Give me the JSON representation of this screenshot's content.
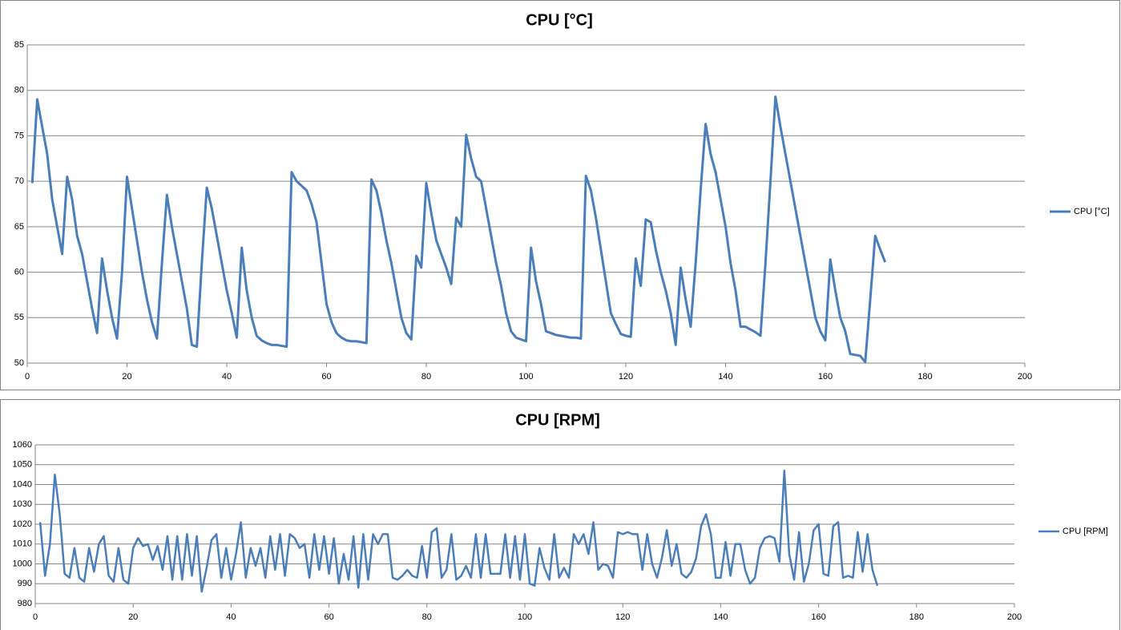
{
  "chart_data": [
    {
      "type": "line",
      "title": "CPU [°C]",
      "x": [
        1,
        2,
        3,
        4,
        5,
        6,
        7,
        8,
        9,
        10,
        11,
        12,
        13,
        14,
        15,
        16,
        17,
        18,
        19,
        20,
        21,
        22,
        23,
        24,
        25,
        26,
        27,
        28,
        29,
        30,
        31,
        32,
        33,
        34,
        35,
        36,
        37,
        38,
        39,
        40,
        41,
        42,
        43,
        44,
        45,
        46,
        47,
        48,
        49,
        50,
        51,
        52,
        53,
        54,
        55,
        56,
        57,
        58,
        59,
        60,
        61,
        62,
        63,
        64,
        65,
        66,
        67,
        68,
        69,
        70,
        71,
        72,
        73,
        74,
        75,
        76,
        77,
        78,
        79,
        80,
        81,
        82,
        83,
        84,
        85,
        86,
        87,
        88,
        89,
        90,
        91,
        92,
        93,
        94,
        95,
        96,
        97,
        98,
        99,
        100,
        101,
        102,
        103,
        104,
        105,
        106,
        107,
        108,
        109,
        110,
        111,
        112,
        113,
        114,
        115,
        116,
        117,
        118,
        119,
        120,
        121,
        122,
        123,
        124,
        125,
        126,
        127,
        128,
        129,
        130,
        131,
        132,
        133,
        134,
        135,
        136,
        137,
        138,
        139,
        140,
        141,
        142,
        143,
        144,
        145,
        146,
        147,
        148,
        149,
        150,
        151,
        152,
        153,
        154,
        155,
        156,
        157,
        158,
        159,
        160,
        161,
        162,
        163,
        164,
        165,
        166,
        167,
        168,
        169,
        170,
        171,
        172
      ],
      "series": [
        {
          "name": "CPU [°C]",
          "color": "#4a7ebb",
          "values": [
            69.8,
            79,
            76,
            73,
            68,
            65,
            62,
            70.5,
            68,
            64,
            62,
            59,
            56,
            53.3,
            61.5,
            58,
            55,
            52.7,
            60,
            70.5,
            67,
            63.5,
            60,
            57,
            54.5,
            52.7,
            61,
            68.5,
            65,
            62,
            59,
            56,
            52,
            51.8,
            61,
            69.3,
            67,
            64,
            61,
            58,
            55.5,
            52.8,
            62.7,
            58,
            55,
            53,
            52.5,
            52.2,
            52,
            52,
            51.9,
            51.8,
            71,
            70,
            69.5,
            69,
            67.5,
            65.5,
            61,
            56.5,
            54.5,
            53.3,
            52.8,
            52.5,
            52.4,
            52.4,
            52.3,
            52.2,
            70.2,
            69,
            66.5,
            63.5,
            61,
            58,
            55,
            53.3,
            52.6,
            61.8,
            60.5,
            69.8,
            66.5,
            63.5,
            62,
            60.5,
            58.7,
            66,
            65,
            75.1,
            72.5,
            70.5,
            70,
            67,
            64,
            61,
            58.5,
            55.5,
            53.5,
            52.8,
            52.6,
            52.4,
            62.7,
            59,
            56.5,
            53.5,
            53.3,
            53.1,
            53,
            52.9,
            52.8,
            52.8,
            52.7,
            70.6,
            69,
            66,
            62.5,
            59,
            55.5,
            54.3,
            53.2,
            53,
            52.9,
            61.5,
            58.5,
            65.8,
            65.5,
            62.5,
            60,
            58,
            55.5,
            52,
            60.5,
            57,
            54,
            61,
            69,
            76.3,
            73,
            71,
            68,
            65,
            61,
            58,
            54,
            54,
            53.7,
            53.4,
            53,
            61,
            70,
            79.3,
            76,
            73,
            70,
            67,
            64,
            61,
            58,
            55,
            53.5,
            52.5,
            61.4,
            58,
            55,
            53.5,
            51,
            50.9,
            50.8,
            50.1,
            57,
            64,
            62.5,
            61.1
          ]
        }
      ],
      "xlim": [
        0,
        200
      ],
      "xticks": [
        0,
        20,
        40,
        60,
        80,
        100,
        120,
        140,
        160,
        180,
        200
      ],
      "ylim": [
        50,
        85
      ],
      "yticks": [
        50,
        55,
        60,
        65,
        70,
        75,
        80,
        85
      ],
      "grid": true,
      "legend": "right"
    },
    {
      "type": "line",
      "title": "CPU [RPM]",
      "x": [
        1,
        2,
        3,
        4,
        5,
        6,
        7,
        8,
        9,
        10,
        11,
        12,
        13,
        14,
        15,
        16,
        17,
        18,
        19,
        20,
        21,
        22,
        23,
        24,
        25,
        26,
        27,
        28,
        29,
        30,
        31,
        32,
        33,
        34,
        35,
        36,
        37,
        38,
        39,
        40,
        41,
        42,
        43,
        44,
        45,
        46,
        47,
        48,
        49,
        50,
        51,
        52,
        53,
        54,
        55,
        56,
        57,
        58,
        59,
        60,
        61,
        62,
        63,
        64,
        65,
        66,
        67,
        68,
        69,
        70,
        71,
        72,
        73,
        74,
        75,
        76,
        77,
        78,
        79,
        80,
        81,
        82,
        83,
        84,
        85,
        86,
        87,
        88,
        89,
        90,
        91,
        92,
        93,
        94,
        95,
        96,
        97,
        98,
        99,
        100,
        101,
        102,
        103,
        104,
        105,
        106,
        107,
        108,
        109,
        110,
        111,
        112,
        113,
        114,
        115,
        116,
        117,
        118,
        119,
        120,
        121,
        122,
        123,
        124,
        125,
        126,
        127,
        128,
        129,
        130,
        131,
        132,
        133,
        134,
        135,
        136,
        137,
        138,
        139,
        140,
        141,
        142,
        143,
        144,
        145,
        146,
        147,
        148,
        149,
        150,
        151,
        152,
        153,
        154,
        155,
        156,
        157,
        158,
        159,
        160,
        161,
        162,
        163,
        164,
        165,
        166,
        167,
        168,
        169,
        170,
        171,
        172
      ],
      "series": [
        {
          "name": "CPU [RPM]",
          "color": "#4a7ebb",
          "values": [
            1021,
            994,
            1010,
            1045,
            1025,
            995,
            993,
            1008,
            993,
            991,
            1008,
            996,
            1010,
            1014,
            994,
            991,
            1008,
            992,
            990,
            1008,
            1013,
            1009,
            1010,
            1002,
            1009,
            997,
            1014,
            992,
            1014,
            992,
            1015,
            994,
            1014,
            986,
            998,
            1012,
            1015,
            993,
            1008,
            992,
            1005,
            1021,
            993,
            1008,
            999,
            1008,
            993,
            1014,
            997,
            1015,
            994,
            1015,
            1013,
            1008,
            1010,
            993,
            1015,
            997,
            1014,
            995,
            1013,
            990,
            1005,
            992,
            1014,
            988,
            1015,
            992,
            1015,
            1010,
            1015,
            1015,
            993,
            992,
            994,
            997,
            994,
            993,
            1009,
            993,
            1016,
            1018,
            993,
            997,
            1015,
            992,
            994,
            999,
            993,
            1015,
            993,
            1015,
            995,
            995,
            995,
            1015,
            993,
            1014,
            992,
            1015,
            990,
            989,
            1008,
            998,
            992,
            1015,
            993,
            998,
            993,
            1015,
            1010,
            1015,
            1005,
            1021,
            997,
            1000,
            999,
            993,
            1016,
            1015,
            1016,
            1015,
            1015,
            997,
            1015,
            1000,
            993,
            1003,
            1017,
            999,
            1010,
            995,
            993,
            996,
            1003,
            1019,
            1025,
            1015,
            993,
            993,
            1011,
            994,
            1010,
            1010,
            997,
            990,
            993,
            1008,
            1013,
            1014,
            1013,
            1001,
            1047,
            1005,
            992,
            1016,
            991,
            1000,
            1017,
            1020,
            995,
            994,
            1019,
            1021,
            993,
            994,
            993,
            1016,
            996,
            1015,
            997,
            989
          ]
        }
      ],
      "xlim": [
        0,
        200
      ],
      "xticks": [
        0,
        20,
        40,
        60,
        80,
        100,
        120,
        140,
        160,
        180,
        200
      ],
      "ylim": [
        980,
        1060
      ],
      "yticks": [
        980,
        990,
        1000,
        1010,
        1020,
        1030,
        1040,
        1050,
        1060
      ],
      "grid": true,
      "legend": "right"
    }
  ]
}
